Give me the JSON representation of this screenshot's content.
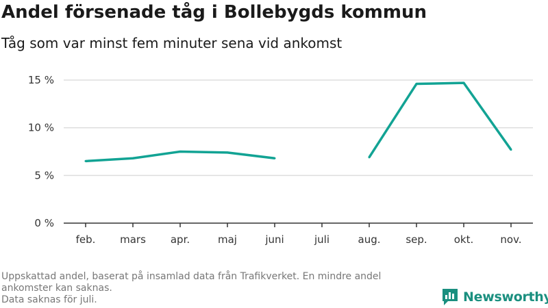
{
  "header": {
    "title": "Andel försenade tåg i Bollebygds kommun",
    "subtitle": "Tåg som var minst fem minuter sena vid ankomst"
  },
  "colors": {
    "line": "#12a394",
    "grid": "#dddddd",
    "axis": "#333333",
    "brand": "#1a8f7f"
  },
  "chart_data": {
    "type": "line",
    "categories": [
      "feb.",
      "mars",
      "apr.",
      "maj",
      "juni",
      "juli",
      "aug.",
      "sep.",
      "okt.",
      "nov."
    ],
    "series": [
      {
        "values": [
          6.5,
          6.8,
          7.5,
          7.4,
          6.8,
          null,
          6.9,
          14.6,
          14.7,
          7.7
        ]
      }
    ],
    "yticks": [
      0,
      5,
      10,
      15
    ],
    "ytick_labels": [
      "0 %",
      "5 %",
      "10 %",
      "15 %"
    ],
    "ylim": [
      0,
      15.5
    ],
    "grid": true
  },
  "footnote": {
    "line1": "Uppskattad andel, baserat på insamlad data från Trafikverket. En mindre andel",
    "line2": "ankomster kan saknas.",
    "line3": "Data saknas för juli."
  },
  "brand": {
    "logo_text": "Newsworthy",
    "logo_icon": "bar-chart-speech-bubble-icon"
  }
}
